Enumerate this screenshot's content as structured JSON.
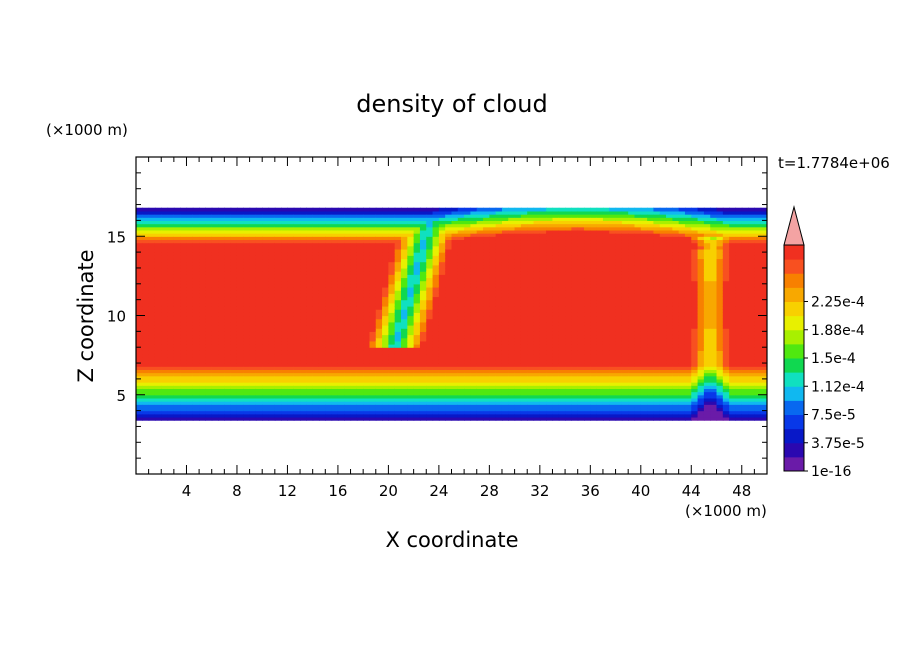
{
  "chart_data": {
    "type": "heatmap",
    "title": "density of cloud",
    "xlabel": "X coordinate",
    "ylabel": "Z coordinate",
    "x_unit": "(×1000 m)",
    "y_unit": "(×1000 m)",
    "time_label": "t=1.7784e+06",
    "xlim": [
      0,
      50
    ],
    "ylim": [
      0,
      20
    ],
    "x_ticks": [
      4,
      8,
      12,
      16,
      20,
      24,
      28,
      32,
      36,
      40,
      44,
      48
    ],
    "y_ticks": [
      5,
      10,
      15
    ],
    "colorbar": {
      "labels": [
        "1e-16",
        "3.75e-5",
        "7.5e-5",
        "1.12e-4",
        "1.5e-4",
        "1.88e-4",
        "2.25e-4"
      ],
      "extend": "max",
      "extend_color": "#f4a3a3",
      "colors": [
        "#6a1ba8",
        "#2a08b0",
        "#0818c8",
        "#0838e8",
        "#0868f0",
        "#10b8f0",
        "#10e0c0",
        "#10d850",
        "#50e810",
        "#a8f000",
        "#e8f000",
        "#f8d000",
        "#f8a800",
        "#f88000",
        "#f85020",
        "#f03020"
      ]
    },
    "cloud_layer": {
      "z_bottom": 3.4,
      "z_top": 16.7,
      "description_levels": "max density about 2.25e-4 between z≈7 and z≈14; low density at edges"
    }
  }
}
